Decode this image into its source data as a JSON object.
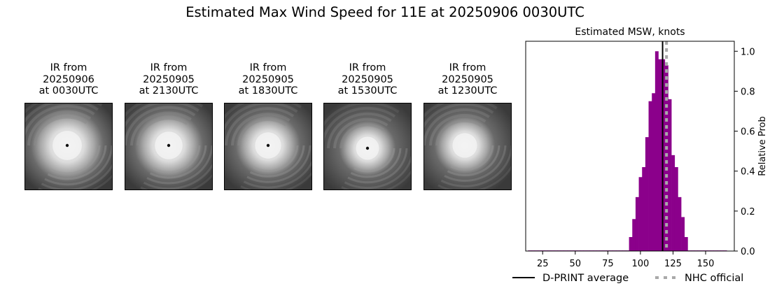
{
  "title": "Estimated Max Wind Speed for 11E at 20250906 0030UTC",
  "panels": [
    {
      "line1": "IR from",
      "line2": "20250906",
      "line3": "at 0030UTC",
      "icon": "satellite-ir-image"
    },
    {
      "line1": "IR from",
      "line2": "20250905",
      "line3": "at 2130UTC",
      "icon": "satellite-ir-image"
    },
    {
      "line1": "IR from",
      "line2": "20250905",
      "line3": "at 1830UTC",
      "icon": "satellite-ir-image"
    },
    {
      "line1": "IR from",
      "line2": "20250905",
      "line3": "at 1530UTC",
      "icon": "satellite-ir-image"
    },
    {
      "line1": "IR from",
      "line2": "20250905",
      "line3": "at 1230UTC",
      "icon": "satellite-ir-image"
    }
  ],
  "chart_data": {
    "type": "bar",
    "title": "Estimated MSW, knots",
    "xlabel": "",
    "ylabel": "Relative Prob",
    "xlim": [
      12,
      172
    ],
    "ylim": [
      0,
      1.05
    ],
    "xticks": [
      25,
      50,
      75,
      100,
      125,
      150
    ],
    "yticks": [
      0.0,
      0.2,
      0.4,
      0.6,
      0.8,
      1.0
    ],
    "ytick_labels": [
      "0.0",
      "0.2",
      "0.4",
      "0.6",
      "0.8",
      "1.0"
    ],
    "bin_width": 2.5,
    "bar_color": "#8b008b",
    "bins": [
      {
        "x": 15,
        "v": 0.003
      },
      {
        "x": 17.5,
        "v": 0.003
      },
      {
        "x": 20,
        "v": 0.003
      },
      {
        "x": 22.5,
        "v": 0.003
      },
      {
        "x": 25,
        "v": 0.003
      },
      {
        "x": 27.5,
        "v": 0.003
      },
      {
        "x": 30,
        "v": 0.003
      },
      {
        "x": 32.5,
        "v": 0.003
      },
      {
        "x": 35,
        "v": 0.003
      },
      {
        "x": 37.5,
        "v": 0.003
      },
      {
        "x": 40,
        "v": 0.003
      },
      {
        "x": 42.5,
        "v": 0.003
      },
      {
        "x": 45,
        "v": 0.003
      },
      {
        "x": 47.5,
        "v": 0.003
      },
      {
        "x": 50,
        "v": 0.003
      },
      {
        "x": 52.5,
        "v": 0.003
      },
      {
        "x": 55,
        "v": 0.003
      },
      {
        "x": 57.5,
        "v": 0.003
      },
      {
        "x": 60,
        "v": 0.003
      },
      {
        "x": 62.5,
        "v": 0.003
      },
      {
        "x": 65,
        "v": 0.003
      },
      {
        "x": 67.5,
        "v": 0.003
      },
      {
        "x": 70,
        "v": 0.003
      },
      {
        "x": 72.5,
        "v": 0.003
      },
      {
        "x": 75,
        "v": 0.003
      },
      {
        "x": 77.5,
        "v": 0.003
      },
      {
        "x": 80,
        "v": 0.003
      },
      {
        "x": 82.5,
        "v": 0.003
      },
      {
        "x": 85,
        "v": 0.003
      },
      {
        "x": 87.5,
        "v": 0.003
      },
      {
        "x": 90,
        "v": 0.003
      },
      {
        "x": 92.5,
        "v": 0.07
      },
      {
        "x": 95,
        "v": 0.16
      },
      {
        "x": 97.5,
        "v": 0.27
      },
      {
        "x": 100,
        "v": 0.37
      },
      {
        "x": 102.5,
        "v": 0.42
      },
      {
        "x": 105,
        "v": 0.57
      },
      {
        "x": 107.5,
        "v": 0.75
      },
      {
        "x": 110,
        "v": 0.79
      },
      {
        "x": 112.5,
        "v": 1.0
      },
      {
        "x": 115,
        "v": 0.96
      },
      {
        "x": 117.5,
        "v": 0.96
      },
      {
        "x": 120,
        "v": 0.93
      },
      {
        "x": 122.5,
        "v": 0.76
      },
      {
        "x": 125,
        "v": 0.48
      },
      {
        "x": 127.5,
        "v": 0.42
      },
      {
        "x": 130,
        "v": 0.27
      },
      {
        "x": 132.5,
        "v": 0.17
      },
      {
        "x": 135,
        "v": 0.07
      },
      {
        "x": 137.5,
        "v": 0.003
      },
      {
        "x": 140,
        "v": 0.003
      },
      {
        "x": 142.5,
        "v": 0.003
      },
      {
        "x": 145,
        "v": 0.003
      },
      {
        "x": 147.5,
        "v": 0.003
      },
      {
        "x": 150,
        "v": 0.003
      },
      {
        "x": 152.5,
        "v": 0.003
      },
      {
        "x": 155,
        "v": 0.003
      },
      {
        "x": 157.5,
        "v": 0.003
      },
      {
        "x": 160,
        "v": 0.003
      },
      {
        "x": 162.5,
        "v": 0.003
      },
      {
        "x": 165,
        "v": 0.003
      }
    ],
    "dprint_average": 117,
    "nhc_official": 120,
    "dprint_color": "#000000",
    "nhc_color": "#a9a9a9",
    "legend": [
      "D-PRINT average",
      "NHC official"
    ],
    "legend_position": "bottom"
  }
}
